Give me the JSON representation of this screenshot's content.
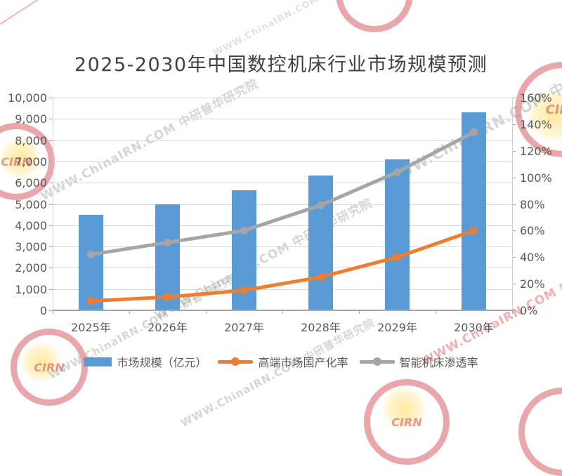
{
  "title": "2025-2030年中国数控机床行业市场规模预测",
  "watermarks": {
    "diagonal_text": "WWW.ChinaIRN.COM 中研普华研究院",
    "stamp_label": "CIRN"
  },
  "chart_data": {
    "type": "combo-bar-line",
    "title": "2025-2030年中国数控机床行业市场规模预测",
    "categories": [
      "2025年",
      "2026年",
      "2027年",
      "2028年",
      "2029年",
      "2030年"
    ],
    "series": [
      {
        "name": "市场规模（亿元）",
        "type": "bar",
        "axis": "left",
        "color": "#5B9BD5",
        "values": [
          4500,
          5000,
          5650,
          6350,
          7100,
          9300
        ]
      },
      {
        "name": "高端市场国产化率",
        "type": "line",
        "axis": "right",
        "color": "#ED7D31",
        "values": [
          7,
          10,
          15,
          25,
          40,
          60
        ],
        "unit": "%"
      },
      {
        "name": "智能机床渗透率",
        "type": "line",
        "axis": "right",
        "color": "#A5A5A5",
        "values": [
          42,
          51,
          60,
          79,
          104,
          134
        ],
        "unit": "%"
      }
    ],
    "left_axis": {
      "min": 0,
      "max": 10000,
      "step": 1000,
      "tick_labels": [
        "10,000",
        "9,000",
        "8,000",
        "7,000",
        "6,000",
        "5,000",
        "4,000",
        "3,000",
        "2,000",
        "1,000",
        "0"
      ]
    },
    "right_axis": {
      "min": 0,
      "max": 160,
      "step": 20,
      "tick_labels": [
        "160%",
        "140%",
        "120%",
        "100%",
        "80%",
        "60%",
        "40%",
        "20%",
        "0%"
      ]
    },
    "grid": "horizontal-on",
    "legend_position": "bottom"
  },
  "colors": {
    "bar": "#5B9BD5",
    "line_localization": "#ED7D31",
    "line_penetration": "#A5A5A5",
    "gridline": "#D9D9D9",
    "axis": "#A6A6A6",
    "axis_text": "#595959",
    "title_text": "#414141",
    "watermark_gray": "#919191",
    "watermark_red": "#C8232D"
  }
}
